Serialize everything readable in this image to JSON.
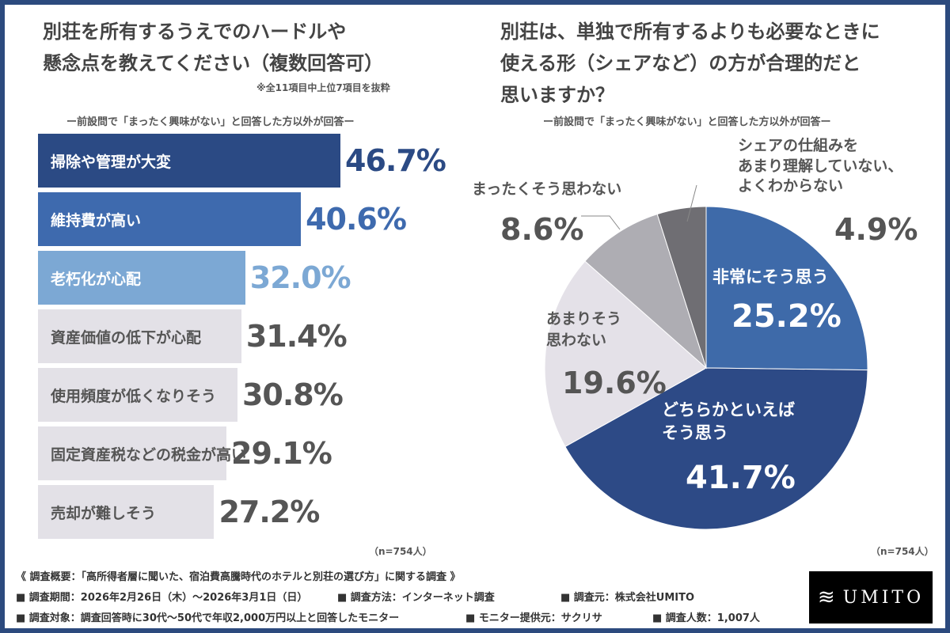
{
  "chart_data": [
    {
      "type": "bar",
      "orientation": "horizontal",
      "title": "別荘を所有するうえでのハードルや懸念点を教えてください（複数回答可）",
      "note": "※全11項目中上位7項目を抜粋",
      "subtitle": "ー前設問で「まったく興味がない」と回答した方以外が回答ー",
      "categories": [
        "掃除や管理が大変",
        "維持費が高い",
        "老朽化が心配",
        "資産価値の低下が心配",
        "使用頻度が低くなりそう",
        "固定資産税などの税金が高い",
        "売却が難しそう"
      ],
      "values": [
        46.7,
        40.6,
        32.0,
        31.4,
        30.8,
        29.1,
        27.2
      ],
      "value_labels": [
        "46.7%",
        "40.6%",
        "32.0%",
        "31.4%",
        "30.8%",
        "29.1%",
        "27.2%"
      ],
      "bar_colors": [
        "#2b4a84",
        "#3e6aae",
        "#7ca8d4",
        "#e3e1e7",
        "#e3e1e7",
        "#e3e1e7",
        "#e3e1e7"
      ],
      "label_colors": [
        "#ffffff",
        "#ffffff",
        "#ffffff",
        "#555555",
        "#555555",
        "#555555",
        "#555555"
      ],
      "value_colors": [
        "#2b4a84",
        "#3e6aae",
        "#7ca8d4",
        "#555555",
        "#555555",
        "#555555",
        "#555555"
      ],
      "sample": "（n=754人）"
    },
    {
      "type": "pie",
      "title": "別荘は、単独で所有するよりも必要なときに使える形（シェアなど）の方が合理的だと思いますか？",
      "subtitle": "ー前設問で「まったく興味がない」と回答した方以外が回答ー",
      "slices": [
        {
          "label": "非常にそう思う",
          "value": 25.2,
          "value_label": "25.2%",
          "color": "#3e6aa9"
        },
        {
          "label": "どちらかといえばそう思う",
          "value": 41.7,
          "value_label": "41.7%",
          "color": "#2d4a86"
        },
        {
          "label": "あまりそう思わない",
          "value": 19.6,
          "value_label": "19.6%",
          "color": "#e4e1e8"
        },
        {
          "label": "まったくそう思わない",
          "value": 8.6,
          "value_label": "8.6%",
          "color": "#aeadb3"
        },
        {
          "label": "シェアの仕組みをあまり理解していない、よくわからない",
          "value": 4.9,
          "value_label": "4.9%",
          "color": "#6f6e73"
        }
      ],
      "start": "12 o'clock",
      "direction": "clockwise",
      "sample": "（n=754人）"
    }
  ],
  "titles": {
    "left": [
      "別荘を所有するうえでのハードルや",
      "懸念点を教えてください（複数回答可）"
    ],
    "right": [
      "別荘は、単独で所有するよりも必要なときに",
      "使える形（シェアなど）の方が合理的だと",
      "思いますか？"
    ]
  },
  "pie_labels": {
    "s0": [
      "非常にそう思う"
    ],
    "s1": [
      "どちらかといえば",
      "そう思う"
    ],
    "s2": [
      "あまりそう",
      "思わない"
    ],
    "s3": [
      "まったくそう思わない"
    ],
    "s4": [
      "シェアの仕組みを",
      "あまり理解していない、",
      "よくわからない"
    ]
  },
  "footer": {
    "summary": "《 調査概要：「高所得者層に聞いた、宿泊費高騰時代のホテルと別荘の選び方」に関する調査 》",
    "period": "■ 調査期間：2026年2月26日（木）～2026年3月1日（日）",
    "method": "■ 調査方法：インターネット調査",
    "source": "■ 調査元：株式会社UMITO",
    "target": "■ 調査対象：調査回答時に30代～50代で年収2,000万円以上と回答したモニター",
    "provider": "■ モニター提供元：サクリサ",
    "count": "■ 調査人数：1,007人"
  },
  "logo": "UMITO"
}
